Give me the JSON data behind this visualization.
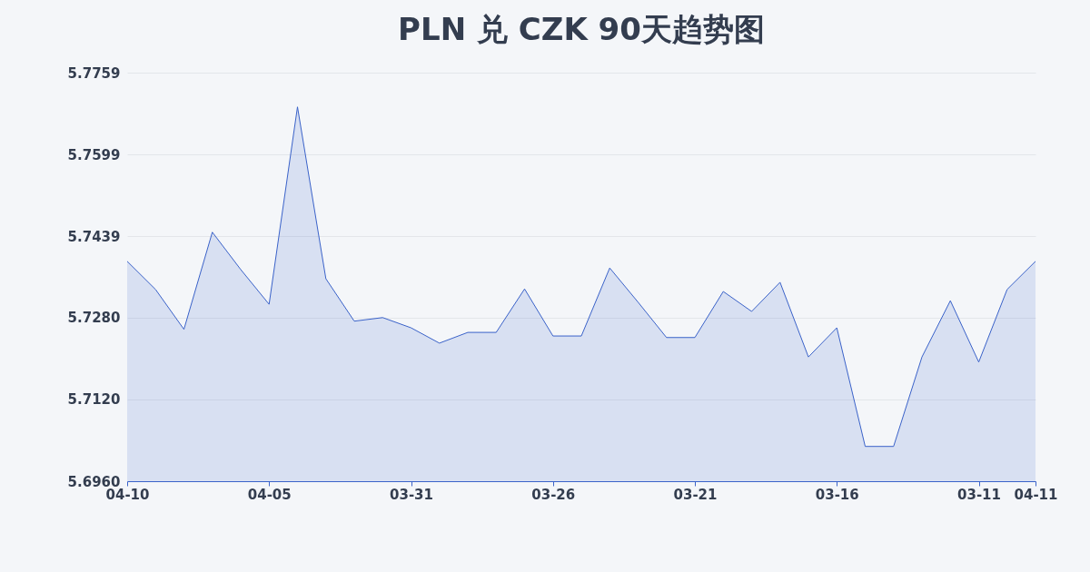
{
  "chart_data": {
    "type": "area",
    "title": "PLN 兑 CZK 90天趋势图",
    "categories": [
      "04-10",
      null,
      null,
      null,
      null,
      "04-05",
      null,
      null,
      null,
      null,
      "03-31",
      null,
      null,
      null,
      null,
      "03-26",
      null,
      null,
      null,
      null,
      "03-21",
      null,
      null,
      null,
      null,
      "03-16",
      null,
      null,
      null,
      null,
      "03-11",
      null,
      "04-11"
    ],
    "series": [
      {
        "color": "#3a62c9",
        "values": [
          5.739,
          5.7335,
          5.7257,
          5.7447,
          5.7374,
          5.7306,
          5.7692,
          5.7356,
          5.7273,
          5.728,
          5.726,
          5.723,
          5.7251,
          5.7251,
          5.7336,
          5.7244,
          5.7244,
          5.7377,
          5.731,
          5.7241,
          5.7241,
          5.7331,
          5.7292,
          5.7349,
          5.7203,
          5.726,
          5.7028,
          5.7028,
          5.7203,
          5.7313,
          5.7193,
          5.7335,
          5.739
        ]
      }
    ],
    "ylim": [
      5.696,
      5.7759
    ],
    "yticks": [
      {
        "value": 5.696,
        "label": "5.6960"
      },
      {
        "value": 5.712,
        "label": "5.7120"
      },
      {
        "value": 5.728,
        "label": "5.7280"
      },
      {
        "value": 5.7439,
        "label": "5.7439"
      },
      {
        "value": 5.7599,
        "label": "5.7599"
      },
      {
        "value": 5.7759,
        "label": "5.7759"
      }
    ],
    "grid": "y"
  }
}
